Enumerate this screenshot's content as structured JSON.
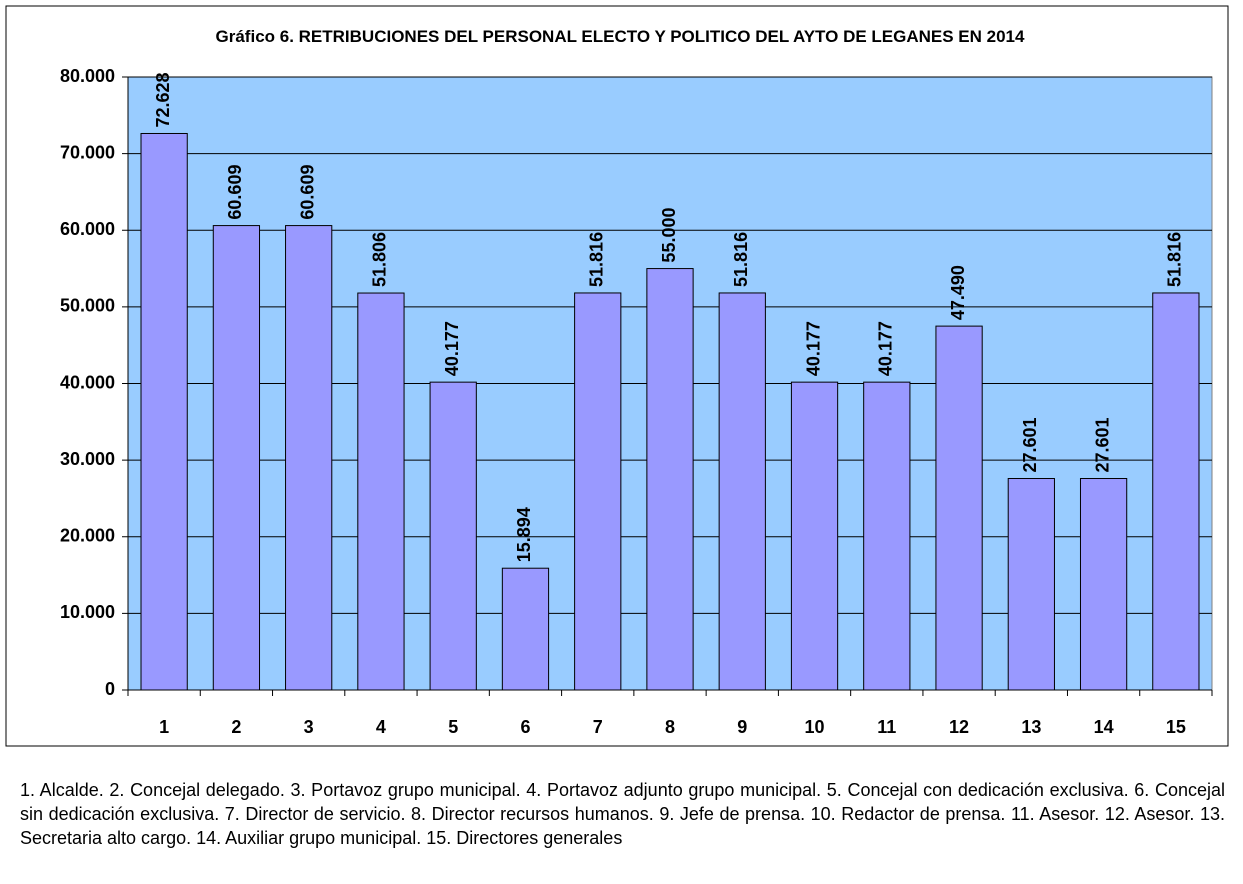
{
  "chart_data": {
    "type": "bar",
    "title": "Gráfico 6. RETRIBUCIONES DEL PERSONAL ELECTO Y POLITICO DEL AYTO DE LEGANES EN 2014",
    "categories": [
      "1",
      "2",
      "3",
      "4",
      "5",
      "6",
      "7",
      "8",
      "9",
      "10",
      "11",
      "12",
      "13",
      "14",
      "15"
    ],
    "values": [
      72628,
      60609,
      60609,
      51806,
      40177,
      15894,
      51816,
      55000,
      51816,
      40177,
      40177,
      47490,
      27601,
      27601,
      51816
    ],
    "value_labels": [
      "72.628",
      "60.609",
      "60.609",
      "51.806",
      "40.177",
      "15.894",
      "51.816",
      "55.000",
      "51.816",
      "40.177",
      "40.177",
      "47.490",
      "27.601",
      "27.601",
      "51.816"
    ],
    "color": "#9999ff",
    "ylim": [
      0,
      80000
    ],
    "yticks": [
      0,
      {
        "value": 10000,
        "label": "10.000"
      },
      {
        "value": 20000,
        "label": "20.000"
      },
      {
        "value": 30000,
        "label": "30.000"
      },
      {
        "value": 40000,
        "label": "40.000"
      },
      {
        "value": 50000,
        "label": "50.000"
      },
      {
        "value": 60000,
        "label": "60.000"
      },
      {
        "value": 70000,
        "label": "70.000"
      },
      {
        "value": 80000,
        "label": "80.000"
      }
    ],
    "grid": true,
    "caption": "1. Alcalde. 2. Concejal delegado. 3. Portavoz grupo municipal. 4. Portavoz adjunto grupo municipal. 5. Concejal con dedicación exclusiva. 6. Concejal sin dedicación exclusiva. 7. Director de servicio. 8. Director recursos humanos. 9. Jefe de prensa. 10. Redactor de prensa. 11. Asesor. 12. Asesor. 13. Secretaria alto cargo. 14. Auxiliar grupo municipal. 15. Directores generales"
  }
}
